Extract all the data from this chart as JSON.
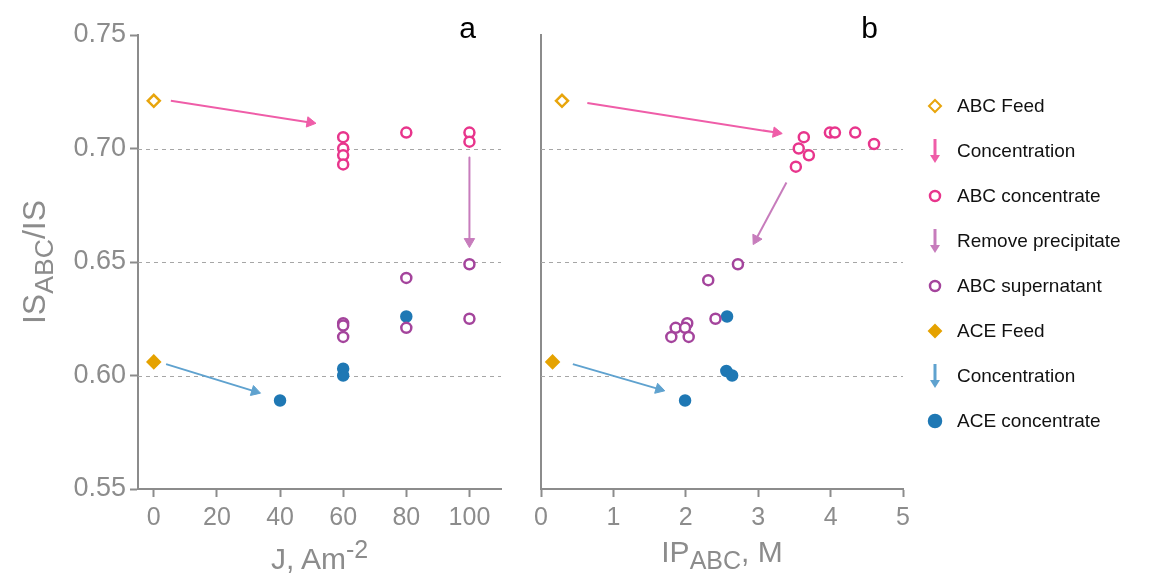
{
  "chart_data": [
    {
      "type": "scatter",
      "ylabel": "IS$_{ABC}$/IS",
      "xlabel": "J, Am$^{-2}$",
      "annotations": [
        "a"
      ],
      "xlim": [
        -5,
        110
      ],
      "xticks": [
        0,
        20,
        40,
        60,
        80,
        100
      ],
      "ylim": [
        0.55,
        0.75
      ],
      "yticks": [
        {
          "value": 0.55,
          "label": "0.55"
        },
        {
          "value": 0.6,
          "label": "0.60"
        },
        {
          "value": 0.65,
          "label": "0.65"
        },
        {
          "value": 0.7,
          "label": "0.70"
        },
        {
          "value": 0.75,
          "label": "0.75"
        }
      ],
      "grid": "y",
      "series": [
        {
          "type": "scatter",
          "marker": "diamond",
          "color": "#e8a50c",
          "x": [
            0
          ],
          "values": [
            0.721
          ]
        },
        {
          "type": "line",
          "marker": "triangle",
          "color": "#ef5da8",
          "x": [
            5.4,
            49.5
          ],
          "values": [
            0.721,
            0.7115
          ]
        },
        {
          "type": "scatter",
          "marker": "circle",
          "color": "#e8358c",
          "x": [
            60,
            60,
            60,
            60,
            80,
            100,
            100
          ],
          "values": [
            0.705,
            0.7,
            0.697,
            0.693,
            0.707,
            0.707,
            0.703
          ]
        },
        {
          "type": "line",
          "marker": "triangle",
          "color": "#c77cbc",
          "x": [
            100,
            100
          ],
          "values": [
            0.696,
            0.659
          ]
        },
        {
          "type": "scatter",
          "marker": "circle",
          "color": "#a4449c",
          "x": [
            60,
            60,
            60,
            80,
            80,
            100,
            100
          ],
          "values": [
            0.623,
            0.622,
            0.617,
            0.643,
            0.621,
            0.649,
            0.625
          ]
        },
        {
          "type": "scatter",
          "marker": "diamond",
          "color": "#e5a200",
          "x": [
            0
          ],
          "values": [
            0.606
          ]
        },
        {
          "type": "line",
          "marker": "triangle",
          "color": "#5fa2cf",
          "x": [
            3.9,
            32
          ],
          "values": [
            0.605,
            0.593
          ]
        },
        {
          "type": "scatter",
          "marker": "circle",
          "color": "#1f78b4",
          "x": [
            40,
            60,
            60,
            80
          ],
          "values": [
            0.589,
            0.603,
            0.6,
            0.626
          ]
        }
      ]
    },
    {
      "type": "scatter",
      "xlabel": "IP$_{ABC}$, M",
      "annotations": [
        "b"
      ],
      "tick_labels": "x",
      "legend": "right",
      "xlim": [
        0,
        5
      ],
      "xticks": [
        0,
        1,
        2,
        3,
        4,
        5
      ],
      "ylim": [
        0.55,
        0.75
      ],
      "yticks": [
        0.55,
        0.6,
        0.65,
        0.7,
        0.75
      ],
      "grid": "y",
      "series": [
        {
          "name": "ABC Feed",
          "type": "scatter",
          "marker": "diamond",
          "color": "#e8a50c",
          "x": [
            0.29
          ],
          "values": [
            0.721
          ]
        },
        {
          "name": "Concentration",
          "type": "line",
          "marker": "triangle",
          "color": "#ef5da8",
          "x": [
            0.64,
            3.25
          ],
          "values": [
            0.72,
            0.707
          ]
        },
        {
          "name": "ABC concentrate",
          "type": "scatter",
          "marker": "circle",
          "color": "#e8358c",
          "x": [
            3.63,
            3.56,
            3.7,
            3.52,
            3.99,
            4.06,
            4.34,
            4.6
          ],
          "values": [
            0.705,
            0.7,
            0.697,
            0.692,
            0.707,
            0.707,
            0.707,
            0.702
          ]
        },
        {
          "name": "Remove precipitate",
          "type": "line",
          "marker": "triangle",
          "color": "#c77cbc",
          "x": [
            3.39,
            2.97
          ],
          "values": [
            0.685,
            0.66
          ]
        },
        {
          "name": "ABC supernatant",
          "type": "scatter",
          "marker": "circle",
          "color": "#a4449c",
          "x": [
            2.72,
            2.31,
            2.41,
            2.02,
            1.86,
            1.99,
            1.8,
            2.04
          ],
          "values": [
            0.649,
            0.642,
            0.625,
            0.623,
            0.621,
            0.621,
            0.617,
            0.617
          ]
        },
        {
          "name": "ACE Feed",
          "type": "scatter",
          "marker": "diamond",
          "color": "#e5a200",
          "x": [
            0.16
          ],
          "values": [
            0.606
          ]
        },
        {
          "name": "Concentration",
          "type": "line",
          "marker": "triangle",
          "color": "#5fa2cf",
          "x": [
            0.44,
            1.63
          ],
          "values": [
            0.605,
            0.594
          ]
        },
        {
          "name": "ACE concentrate",
          "type": "scatter",
          "marker": "circle",
          "color": "#1f78b4",
          "x": [
            1.99,
            2.57,
            2.56,
            2.64
          ],
          "values": [
            0.589,
            0.626,
            0.602,
            0.6
          ]
        }
      ]
    }
  ]
}
